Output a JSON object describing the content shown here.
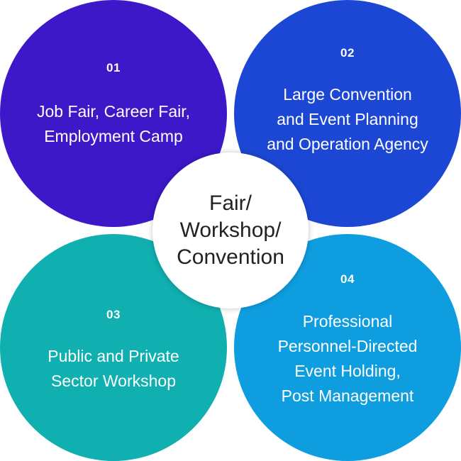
{
  "center": {
    "label": "Fair/\nWorkshop/\nConvention"
  },
  "items": [
    {
      "number": "01",
      "label": "Job Fair, Career Fair,\nEmployment Camp",
      "color": "#3d18c9"
    },
    {
      "number": "02",
      "label": "Large Convention\nand Event Planning\nand Operation Agency",
      "color": "#1c47d4"
    },
    {
      "number": "03",
      "label": "Public and Private\nSector Workshop",
      "color": "#10afb0"
    },
    {
      "number": "04",
      "label": "Professional\nPersonnel-Directed\nEvent Holding,\nPost Management",
      "color": "#0e9ddf"
    }
  ]
}
